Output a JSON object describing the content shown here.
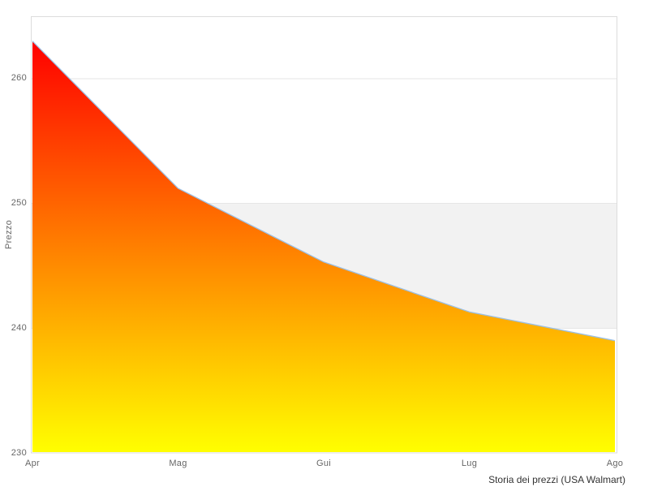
{
  "chart_data": {
    "type": "area",
    "categories": [
      "Apr",
      "Mag",
      "Gui",
      "Lug",
      "Ago"
    ],
    "values": [
      263,
      251.2,
      245.3,
      241.3,
      239
    ],
    "series_name": "Prezzo",
    "title": "",
    "xlabel": "",
    "ylabel": "Prezzo",
    "caption": "Storia dei prezzi (USA Walmart)",
    "ylim": [
      230,
      265
    ],
    "yticks": [
      230,
      240,
      250,
      260
    ],
    "plot_band": {
      "from": 240,
      "to": 250
    },
    "legend": "none",
    "grid": "horizontal",
    "colors": {
      "gradient_top": "#ff0000",
      "gradient_bottom": "#ffff00",
      "line": "#9cc0e4",
      "band": "#f2f2f2",
      "gridline": "#e6e6e6",
      "border": "#dcdcdc",
      "tick_text": "#666666",
      "caption_text": "#333333",
      "background": "#ffffff"
    }
  }
}
